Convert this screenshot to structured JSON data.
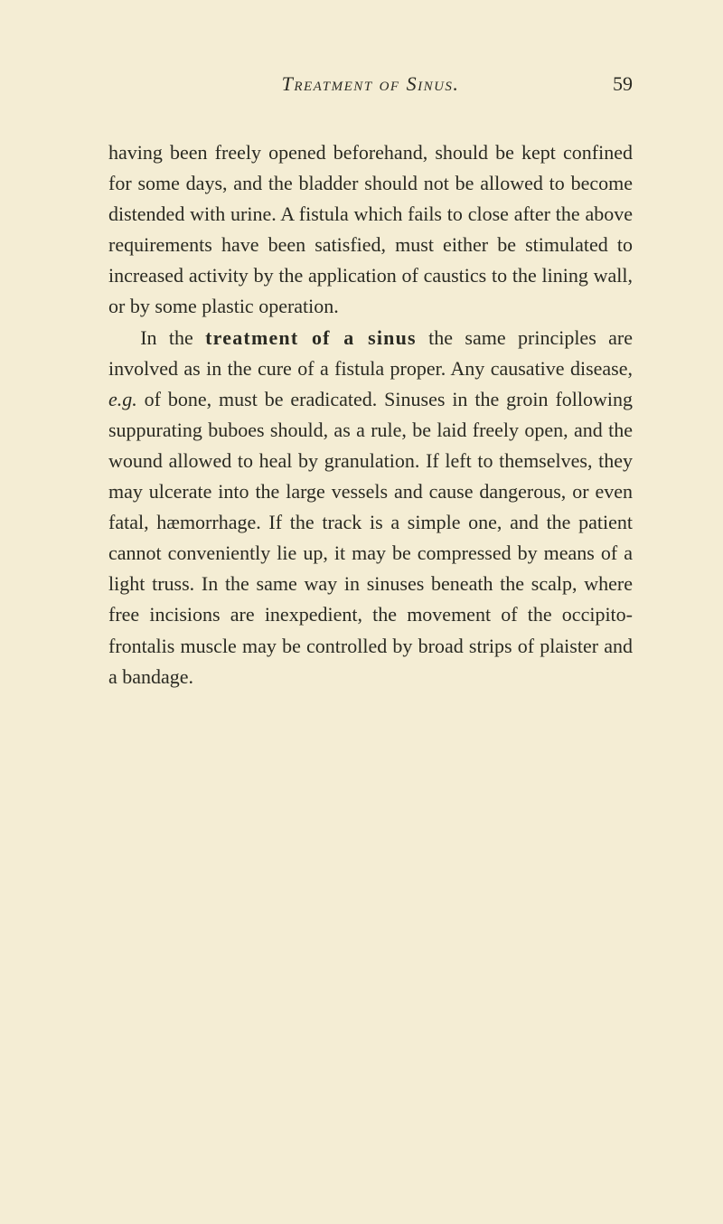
{
  "colors": {
    "page_bg": "#f4edd4",
    "text": "#2a2a22"
  },
  "typography": {
    "body_font_size_pt": 16,
    "line_height": 1.55,
    "font_family": "Times New Roman, Georgia, serif"
  },
  "header": {
    "running_title": "Treatment of Sinus.",
    "page_number": "59"
  },
  "paragraphs": {
    "p1": {
      "text": "having been freely opened beforehand, should be kept confined for some days, and the bladder should not be allowed to become distended with urine. A fistula which fails to close after the above requirements have been satisfied, must either be stimulated to increased activity by the application of caustics to the lining wall, or by some plastic operation."
    },
    "p2": {
      "prefix": "In the ",
      "bold_phrase": "treatment of a sinus",
      "after_bold": " the same principles are involved as in the cure of a fistula proper. Any causative disease, ",
      "eg": "e.g.",
      "remainder": " of bone, must be eradicated. Sinuses in the groin following suppurating buboes should, as a rule, be laid freely open, and the wound allowed to heal by granulation. If left to themselves, they may ulcerate into the large vessels and cause dangerous, or even fatal, hæmorrhage. If the track is a simple one, and the patient cannot conveniently lie up, it may be compressed by means of a light truss. In the same way in sinuses beneath the scalp, where free incisions are inexpedient, the movement of the occipito-frontalis muscle may be controlled by broad strips of plaister and a bandage."
    }
  }
}
